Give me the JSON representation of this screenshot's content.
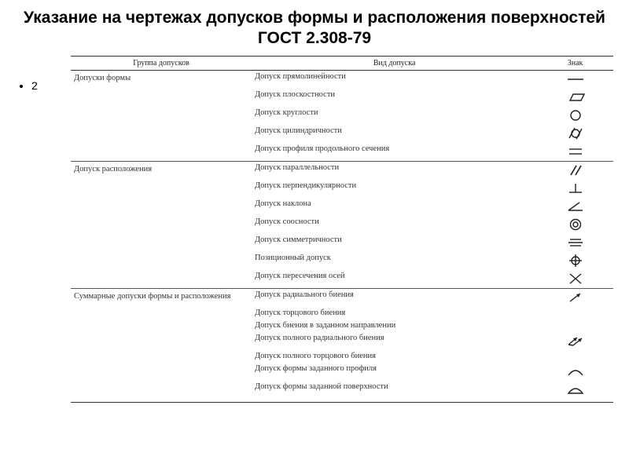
{
  "title": "Указание на чертежах допусков формы и расположения поверхностей ГОСТ 2.308-79",
  "bullet": "2",
  "headers": {
    "group": "Группа допусков",
    "type": "Вид допуска",
    "symbol": "Знак"
  },
  "groups": [
    {
      "label": "Допуски формы",
      "rows": [
        {
          "type": "Допуск прямолинейности",
          "symIdx": 0
        },
        {
          "type": "Допуск плоскостности",
          "symIdx": 1
        },
        {
          "type": "Допуск круглости",
          "symIdx": 2
        },
        {
          "type": "Допуск цилиндричности",
          "symIdx": 3
        },
        {
          "type": "Допуск профиля продольного сечения",
          "symIdx": 4
        }
      ]
    },
    {
      "label": "Допуск расположения",
      "rows": [
        {
          "type": "Допуск параллельности",
          "symIdx": 5
        },
        {
          "type": "Допуск перпендикулярности",
          "symIdx": 6
        },
        {
          "type": "Допуск наклона",
          "symIdx": 7
        },
        {
          "type": "Допуск соосности",
          "symIdx": 8
        },
        {
          "type": "Допуск симметричности",
          "symIdx": 9
        },
        {
          "type": "Позиционный допуск",
          "symIdx": 10
        },
        {
          "type": "Допуск пересечения осей",
          "symIdx": 11
        }
      ]
    },
    {
      "label": "Суммарные допуски формы и расположения",
      "rows": [
        {
          "type": "Допуск радиального биения",
          "symIdx": 12
        },
        {
          "type": "Допуск торцового биения",
          "symIdx": -1
        },
        {
          "type": "Допуск биения в заданном направлении",
          "symIdx": -1
        },
        {
          "type": "Допуск полного радиального биения",
          "symIdx": 13
        },
        {
          "type": "Допуск полного торцового биения",
          "symIdx": -1
        },
        {
          "type": "Допуск формы заданного профиля",
          "symIdx": 14
        },
        {
          "type": "Допуск формы заданной поверхности",
          "symIdx": 15
        }
      ]
    }
  ],
  "symbolColor": "#222222",
  "strokeWidth": 1.4
}
